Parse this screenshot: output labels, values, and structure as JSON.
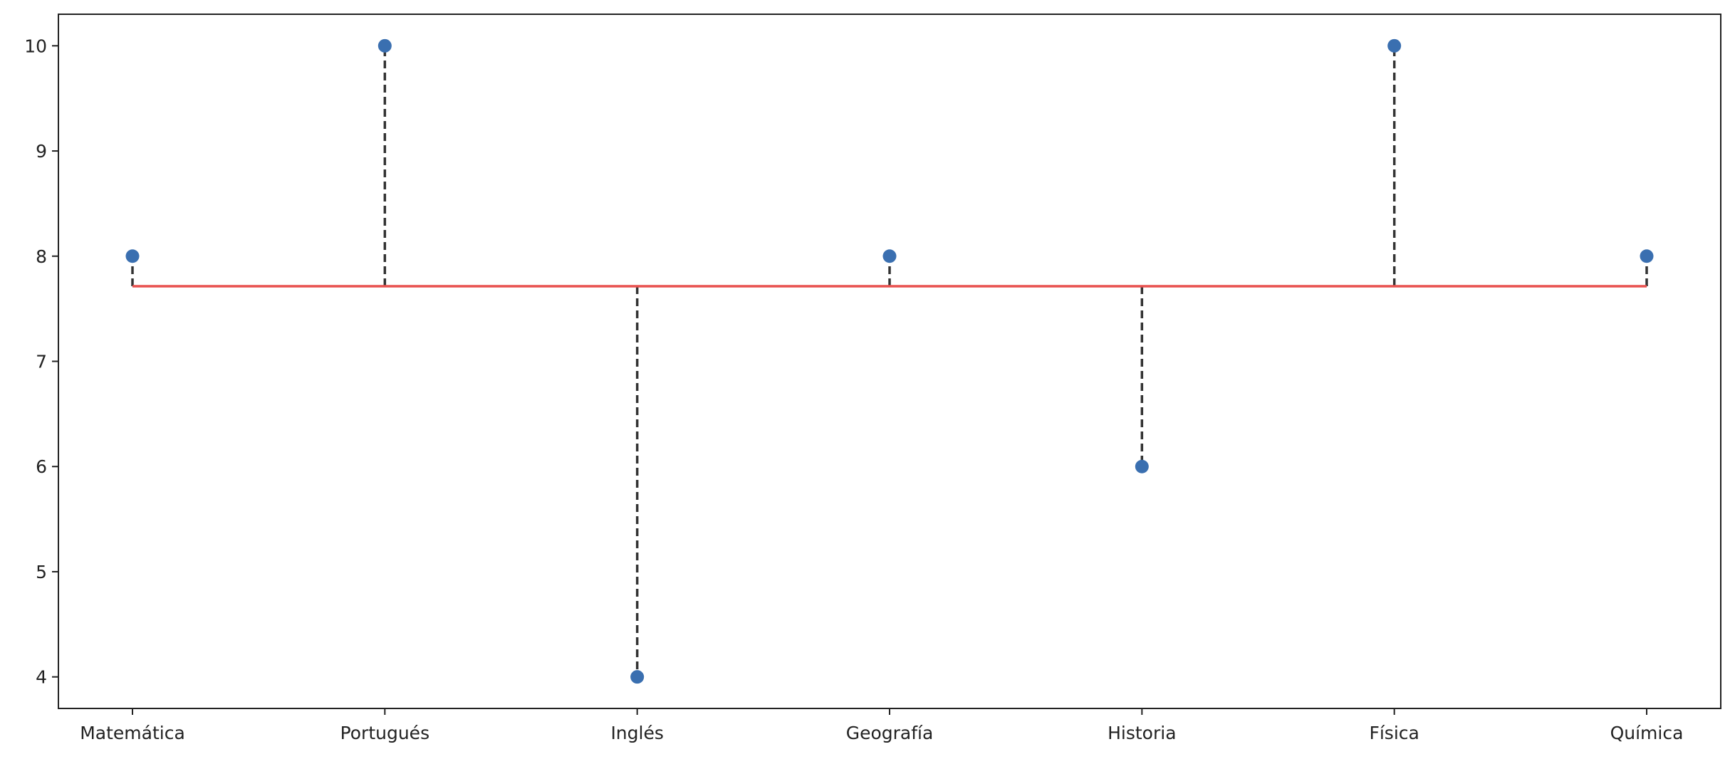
{
  "chart_data": {
    "type": "scatter",
    "title": "",
    "xlabel": "",
    "ylabel": "",
    "categories": [
      "Matemática",
      "Portugués",
      "Inglés",
      "Geografía",
      "Historia",
      "Física",
      "Química"
    ],
    "series": [
      {
        "values": [
          8,
          10,
          4,
          8,
          6,
          10,
          8
        ],
        "marker": "circle",
        "color": "#3a6fb0"
      }
    ],
    "mean_line": {
      "value": 7.714,
      "color": "#e8514f"
    },
    "residual_lines": {
      "style": "dashed",
      "color": "#333333"
    },
    "ylim": [
      3.7,
      10.3
    ],
    "yticks": [
      4,
      5,
      6,
      7,
      8,
      9,
      10
    ],
    "grid": false,
    "legend": "none"
  }
}
